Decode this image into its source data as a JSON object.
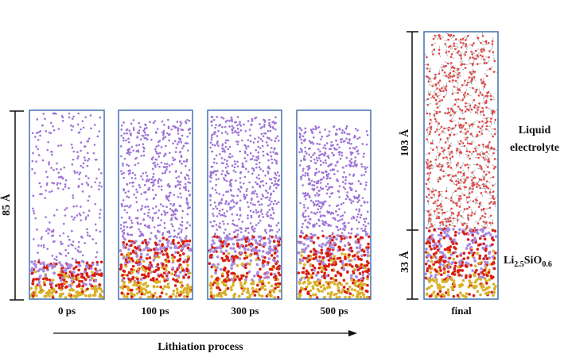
{
  "colors": {
    "box_border": "#4e79b6",
    "electrolyte_atom": "#9d73d6",
    "final_electrolyte_atom": "#e64545",
    "oxygen_atom": "#d91e0f",
    "silicon_atom": "#d9b02a",
    "lithium_atom": "#a98be0",
    "dimension_line": "#111111",
    "arrow": "#111111"
  },
  "snapshots": [
    {
      "time": "0 ps"
    },
    {
      "time": "100 ps"
    },
    {
      "time": "300 ps"
    },
    {
      "time": "500 ps"
    }
  ],
  "left_dimension": "85 Å",
  "process_label": "Lithiation process",
  "final_panel": {
    "label": "final",
    "top_dimension": "103 Å",
    "bottom_dimension": "33 Å",
    "electrolyte_label_line1": "Liquid",
    "electrolyte_label_line2": "electrolyte",
    "product_label": {
      "base": "Li",
      "sub1": "2.5",
      "mid": "SiO",
      "sub2": "0.6"
    }
  }
}
